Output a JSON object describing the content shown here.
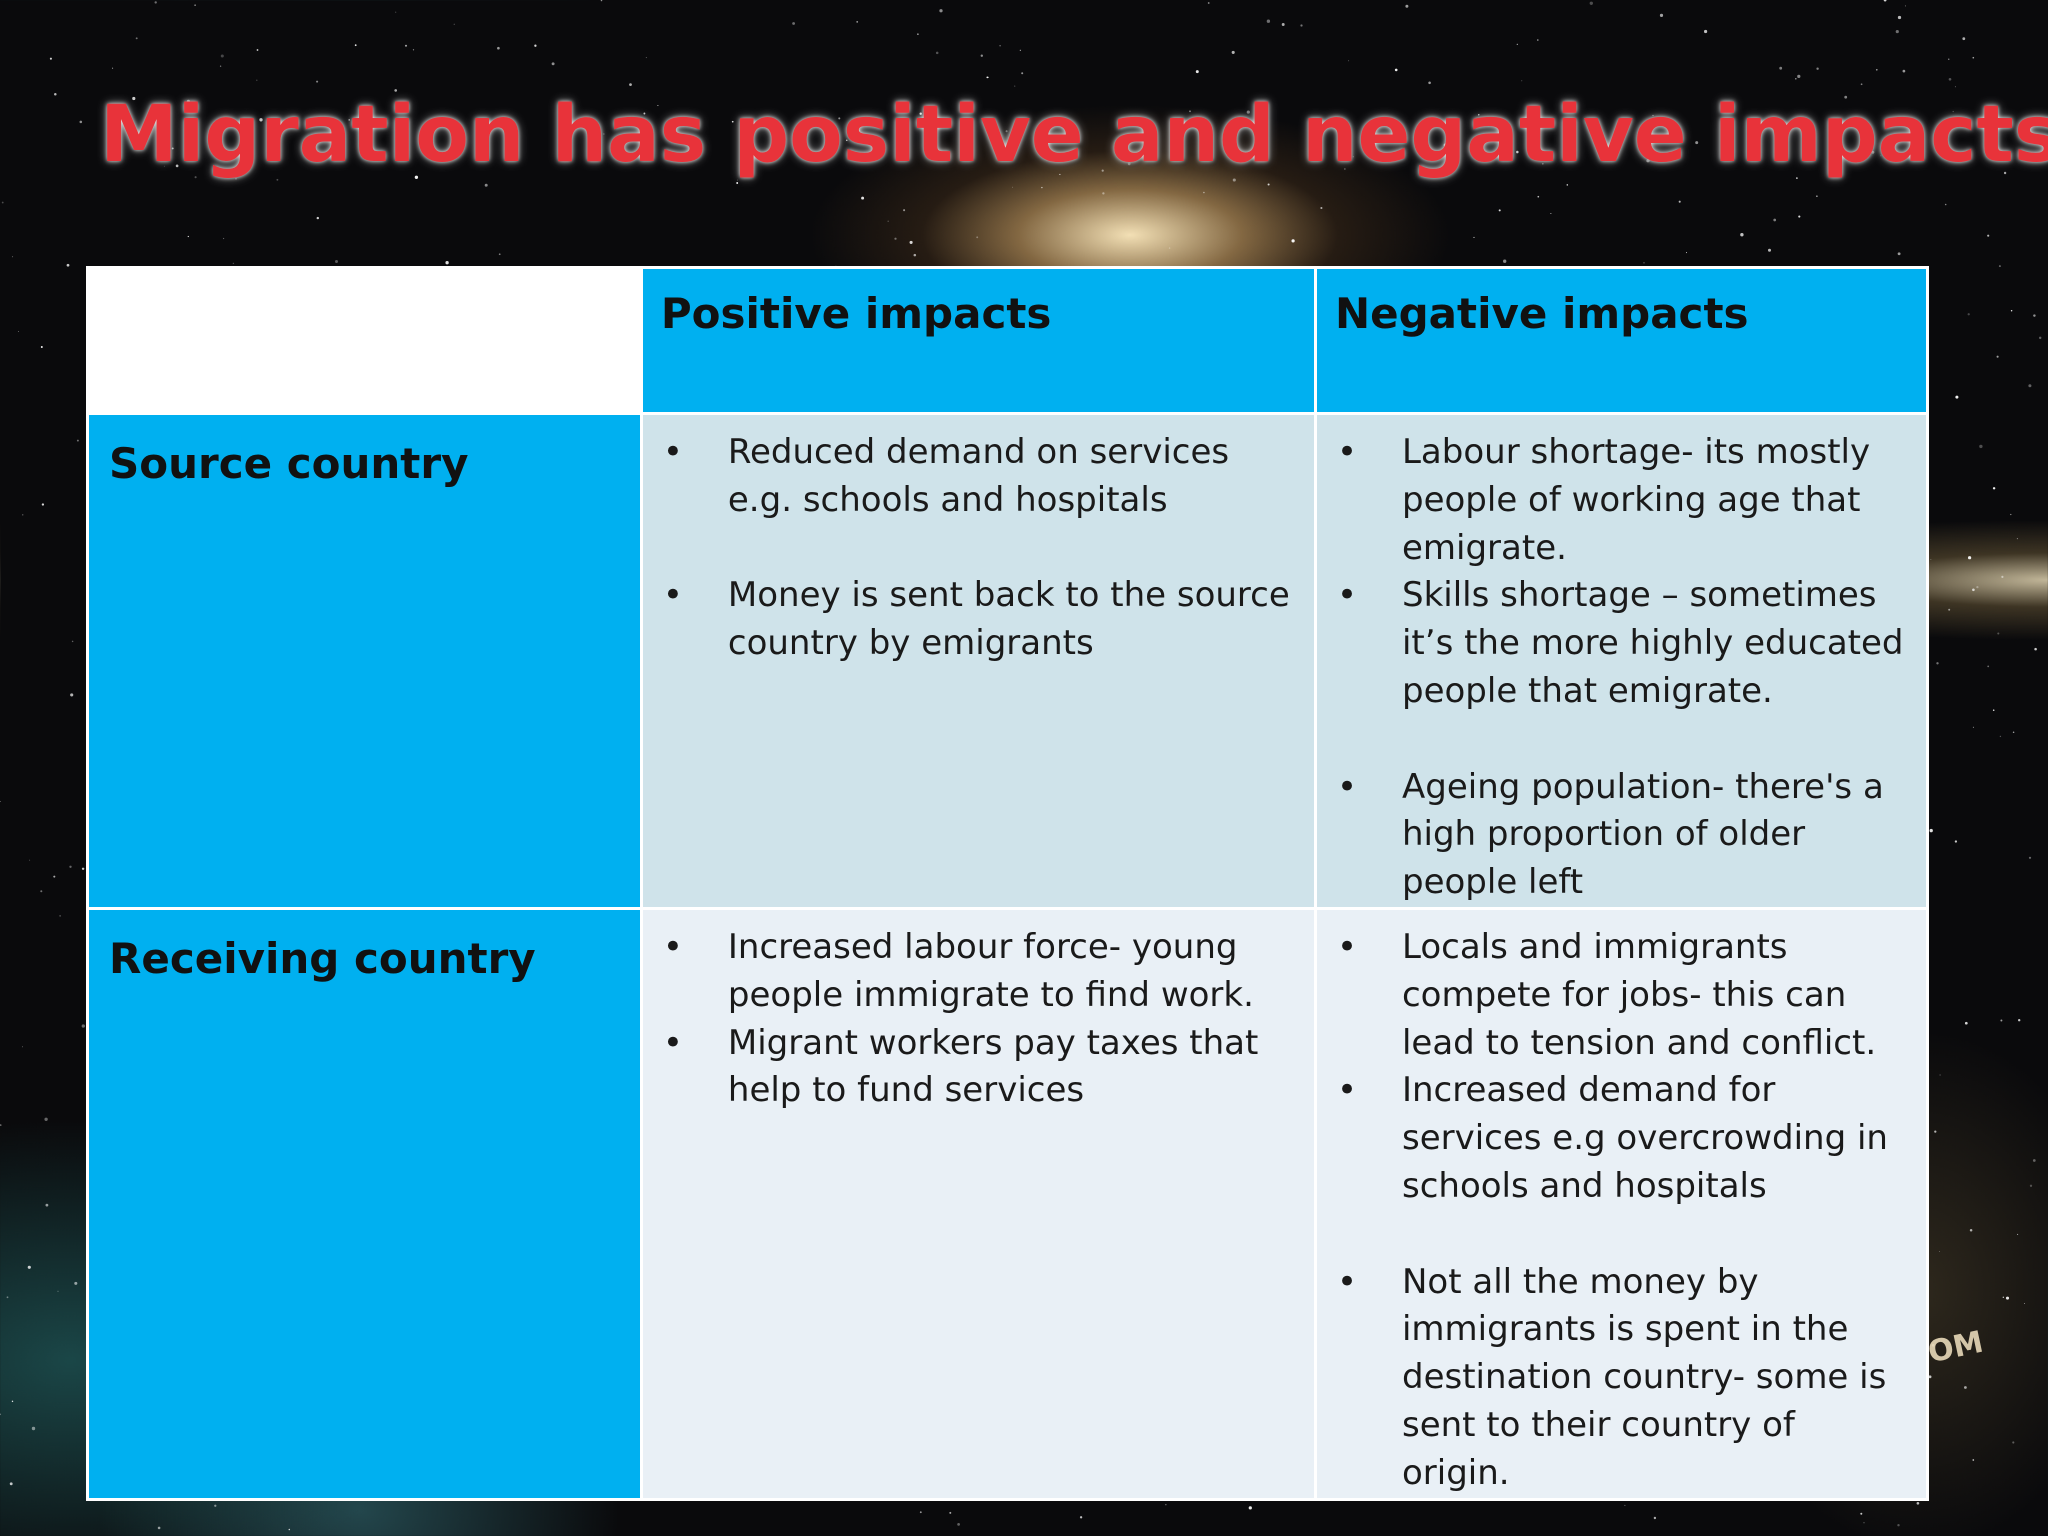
{
  "slide": {
    "title": "Migration has positive and negative impacts",
    "watermark": "OM"
  },
  "table": {
    "columns": [
      "",
      "Positive impacts",
      "Negative impacts"
    ],
    "rows": [
      {
        "label": "Source country",
        "positive": [
          "Reduced demand on services e.g. schools and hospitals",
          "Money is sent back to the source country by emigrants"
        ],
        "negative": [
          "Labour shortage- its mostly people of working age that emigrate.",
          "Skills shortage – sometimes it’s the more highly educated people that emigrate.",
          "Ageing population- there's a high proportion of older people left"
        ]
      },
      {
        "label": "Receiving country",
        "positive": [
          "Increased labour force- young people immigrate to find work.",
          "Migrant workers pay taxes that help to fund services"
        ],
        "negative": [
          "Locals and immigrants compete for jobs- this can lead to tension and conflict.",
          "Increased demand for services e.g overcrowding in schools and hospitals",
          "Not all the money by immigrants is spent in the destination country- some is sent to their country of origin."
        ]
      }
    ]
  },
  "colors": {
    "title": "#e8333a",
    "header_fill": "#00b0f0",
    "row1_fill": "#cfe3ea",
    "row2_fill": "#e9f0f6",
    "background": "#0a0a0c"
  }
}
